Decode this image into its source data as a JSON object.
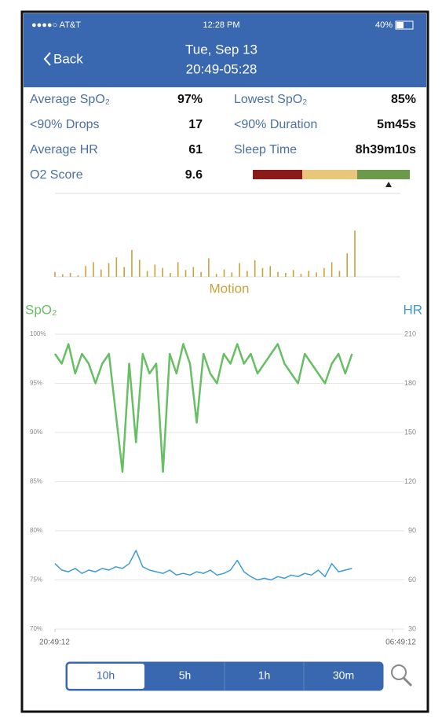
{
  "status_bar": {
    "carrier": "●●●●○ AT&T",
    "time": "12:28 PM",
    "battery": "40%"
  },
  "header": {
    "back": "Back",
    "date": "Tue, Sep 13",
    "range": "20:49-05:28"
  },
  "stats": [
    {
      "label": "Average SpO₂",
      "value": "97%"
    },
    {
      "label": "Lowest SpO₂",
      "value": "85%"
    },
    {
      "label": "<90% Drops",
      "value": "17"
    },
    {
      "label": "<90% Duration",
      "value": "5m45s"
    },
    {
      "label": "Average HR",
      "value": "61"
    },
    {
      "label": "Sleep Time",
      "value": "8h39m10s"
    },
    {
      "label": "O2 Score",
      "value": "9.6"
    }
  ],
  "chart_data": [
    {
      "type": "bar",
      "title": "Motion",
      "color": "#c9a23a",
      "ylim": [
        0,
        100
      ],
      "values": [
        10,
        5,
        8,
        3,
        22,
        30,
        15,
        28,
        40,
        20,
        55,
        35,
        12,
        25,
        18,
        8,
        30,
        14,
        20,
        10,
        38,
        6,
        15,
        9,
        28,
        12,
        34,
        18,
        22,
        10,
        8,
        14,
        6,
        12,
        9,
        18,
        30,
        12,
        48,
        95
      ]
    },
    {
      "type": "line",
      "xlim": [
        0,
        10
      ],
      "xticks": [
        {
          "value": 0,
          "label": "20:49:12"
        },
        {
          "value": 10,
          "label": "06:49:12"
        }
      ],
      "ylabel": "SpO₂",
      "y2label": "HR",
      "ylim": [
        70,
        100
      ],
      "yticks": [
        {
          "value": 70,
          "label": "70%"
        },
        {
          "value": 75,
          "label": "75%"
        },
        {
          "value": 80,
          "label": "80%"
        },
        {
          "value": 85,
          "label": "85%"
        },
        {
          "value": 90,
          "label": "90%"
        },
        {
          "value": 95,
          "label": "95%"
        },
        {
          "value": 100,
          "label": "100%"
        }
      ],
      "y2lim": [
        30,
        210
      ],
      "y2ticks": [
        30,
        60,
        90,
        120,
        150,
        180,
        210
      ],
      "grid": true,
      "x": [
        0,
        0.2,
        0.4,
        0.6,
        0.8,
        1,
        1.2,
        1.4,
        1.6,
        1.8,
        2,
        2.2,
        2.4,
        2.6,
        2.8,
        3,
        3.2,
        3.4,
        3.6,
        3.8,
        4,
        4.2,
        4.4,
        4.6,
        4.8,
        5,
        5.2,
        5.4,
        5.6,
        5.8,
        6,
        6.2,
        6.4,
        6.6,
        6.8,
        7,
        7.2,
        7.4,
        7.6,
        7.8,
        8,
        8.2,
        8.4,
        8.6,
        8.8
      ],
      "series": [
        {
          "name": "SpO₂",
          "color": "#67bf63",
          "values": [
            98,
            97,
            99,
            96,
            98,
            97,
            95,
            97,
            98,
            92,
            86,
            97,
            89,
            98,
            96,
            97,
            86,
            98,
            96,
            99,
            97,
            91,
            98,
            96,
            95,
            98,
            97,
            99,
            97,
            98,
            96,
            97,
            98,
            99,
            97,
            96,
            95,
            98,
            97,
            96,
            95,
            97,
            98,
            96,
            98
          ]
        },
        {
          "name": "HR",
          "color": "#3d9ad6",
          "axis": "y2",
          "values": [
            70,
            66,
            65,
            67,
            64,
            66,
            65,
            67,
            66,
            68,
            67,
            70,
            78,
            68,
            66,
            65,
            64,
            66,
            63,
            64,
            63,
            65,
            64,
            66,
            63,
            64,
            66,
            72,
            65,
            62,
            60,
            61,
            60,
            62,
            61,
            63,
            62,
            64,
            63,
            66,
            62,
            70,
            65,
            66,
            67
          ]
        }
      ]
    }
  ],
  "time_buttons": [
    "10h",
    "5h",
    "1h",
    "30m"
  ]
}
